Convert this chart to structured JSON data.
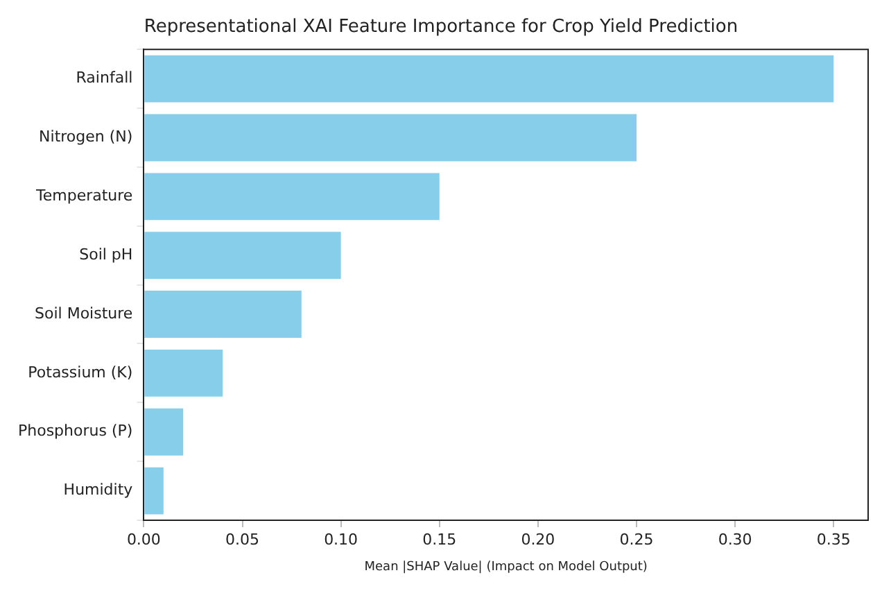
{
  "chart_data": {
    "type": "bar",
    "orientation": "horizontal",
    "title": "Representational XAI Feature Importance for Crop Yield Prediction",
    "xlabel": "Mean |SHAP Value| (Impact on Model Output)",
    "categories": [
      "Rainfall",
      "Nitrogen (N)",
      "Temperature",
      "Soil pH",
      "Soil Moisture",
      "Potassium (K)",
      "Phosphorus (P)",
      "Humidity"
    ],
    "values": [
      0.35,
      0.25,
      0.15,
      0.1,
      0.08,
      0.04,
      0.02,
      0.01
    ],
    "color": "#87ceeb",
    "xlim": [
      0,
      0.3675
    ],
    "xticks": [
      {
        "value": 0,
        "label": "0.00"
      },
      {
        "value": 0.05,
        "label": "0.05"
      },
      {
        "value": 0.1,
        "label": "0.10"
      },
      {
        "value": 0.15,
        "label": "0.15"
      },
      {
        "value": 0.2,
        "label": "0.20"
      },
      {
        "value": 0.25,
        "label": "0.25"
      },
      {
        "value": 0.3,
        "label": "0.30"
      },
      {
        "value": 0.35,
        "label": "0.35"
      }
    ],
    "grid": false,
    "legend": false
  }
}
